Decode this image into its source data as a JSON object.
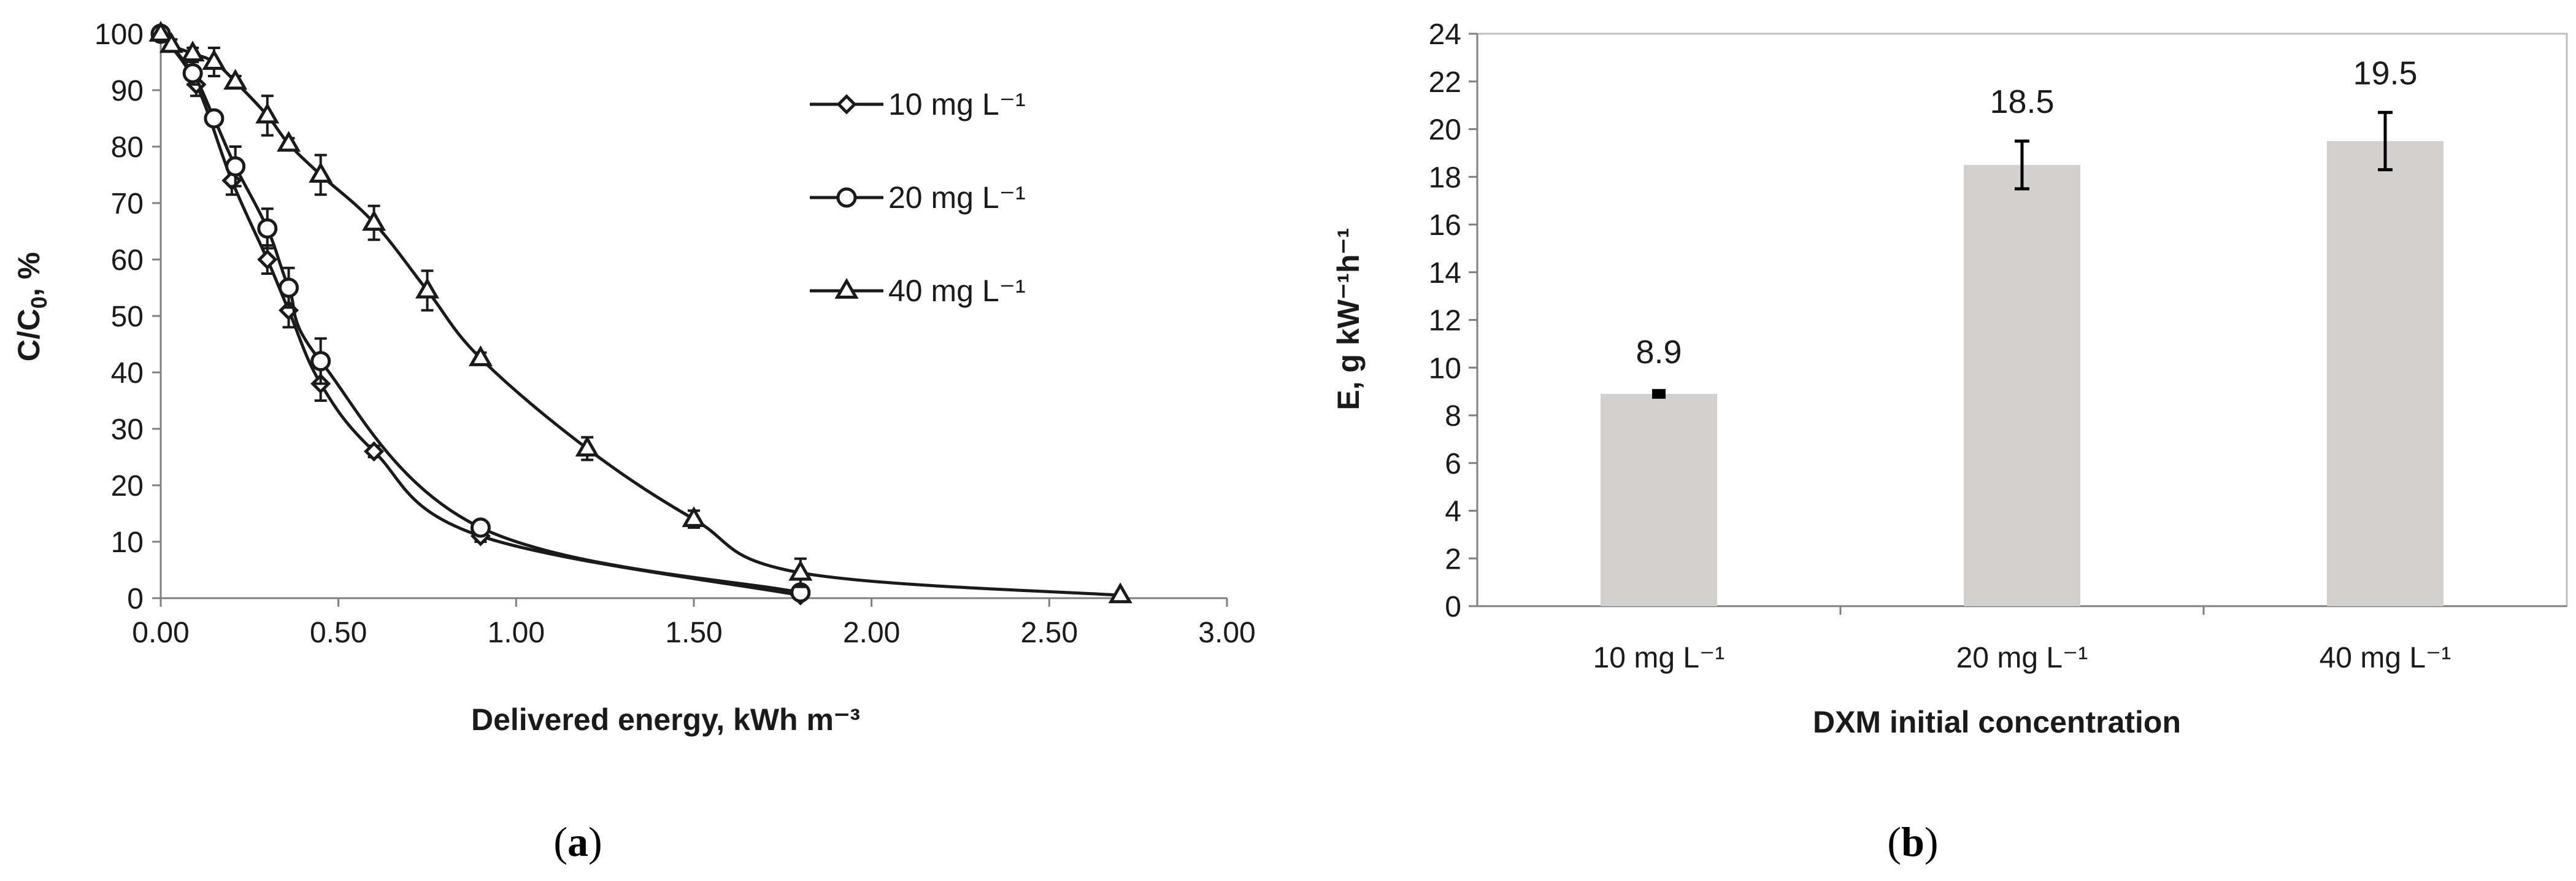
{
  "chart_data": [
    {
      "type": "line",
      "panel": "a",
      "xlabel": "Delivered energy, kWh m⁻³",
      "ylabel": "C/C",
      "ylabel_sub": "0",
      "ylabel_suffix": ", %",
      "xlim": [
        0,
        3
      ],
      "ylim": [
        0,
        100
      ],
      "xticks": [
        "0.00",
        "0.50",
        "1.00",
        "1.50",
        "2.00",
        "2.50",
        "3.00"
      ],
      "yticks": [
        "0",
        "10",
        "20",
        "30",
        "40",
        "50",
        "60",
        "70",
        "80",
        "90",
        "100"
      ],
      "legend_position": "upper-right",
      "series": [
        {
          "name": "10 mg L⁻¹",
          "marker": "diamond",
          "x": [
            0,
            0.1,
            0.2,
            0.3,
            0.36,
            0.45,
            0.6,
            0.9,
            1.8
          ],
          "y": [
            100,
            91,
            74,
            60,
            51,
            38,
            26,
            11,
            0.5
          ],
          "err": [
            0,
            2,
            2.5,
            2.5,
            3,
            3,
            1,
            1,
            0.5
          ]
        },
        {
          "name": "20 mg L⁻¹",
          "marker": "circle",
          "x": [
            0,
            0.09,
            0.15,
            0.21,
            0.3,
            0.36,
            0.45,
            0.9,
            1.8
          ],
          "y": [
            100,
            93,
            85,
            76.5,
            65.5,
            55,
            42,
            12.5,
            1
          ],
          "err": [
            0,
            2,
            1,
            3.5,
            3.5,
            3.5,
            4,
            1,
            1
          ]
        },
        {
          "name": "40 mg L⁻¹",
          "marker": "triangle",
          "x": [
            0,
            0.03,
            0.09,
            0.15,
            0.21,
            0.3,
            0.36,
            0.45,
            0.6,
            0.75,
            0.9,
            1.2,
            1.5,
            1.8,
            2.7
          ],
          "y": [
            100,
            98,
            96.5,
            95,
            91.5,
            85.5,
            80.5,
            75,
            66.5,
            54.5,
            42.5,
            26.5,
            14,
            4.5,
            0.5
          ],
          "err": [
            0,
            1,
            1,
            2.5,
            1,
            3.5,
            1,
            3.5,
            3,
            3.5,
            1,
            2,
            1.5,
            2.5,
            0.5
          ]
        }
      ]
    },
    {
      "type": "bar",
      "panel": "b",
      "xlabel": "DXM initial concentration",
      "ylabel": "E, g kW⁻¹h⁻¹",
      "ylim": [
        0,
        24
      ],
      "yticks": [
        "0",
        "2",
        "4",
        "6",
        "8",
        "10",
        "12",
        "14",
        "16",
        "18",
        "20",
        "22",
        "24"
      ],
      "categories": [
        "10 mg L⁻¹",
        "20 mg L⁻¹",
        "40 mg L⁻¹"
      ],
      "values": [
        8.9,
        18.5,
        19.5
      ],
      "value_labels": [
        "8.9",
        "18.5",
        "19.5"
      ],
      "err": [
        0.1,
        1.0,
        1.2
      ],
      "bar_color": "#d3d0d0"
    }
  ],
  "panel_labels": {
    "a": {
      "open": "(",
      "letter": "a",
      "close": ")"
    },
    "b": {
      "open": "(",
      "letter": "b",
      "close": ")"
    }
  }
}
